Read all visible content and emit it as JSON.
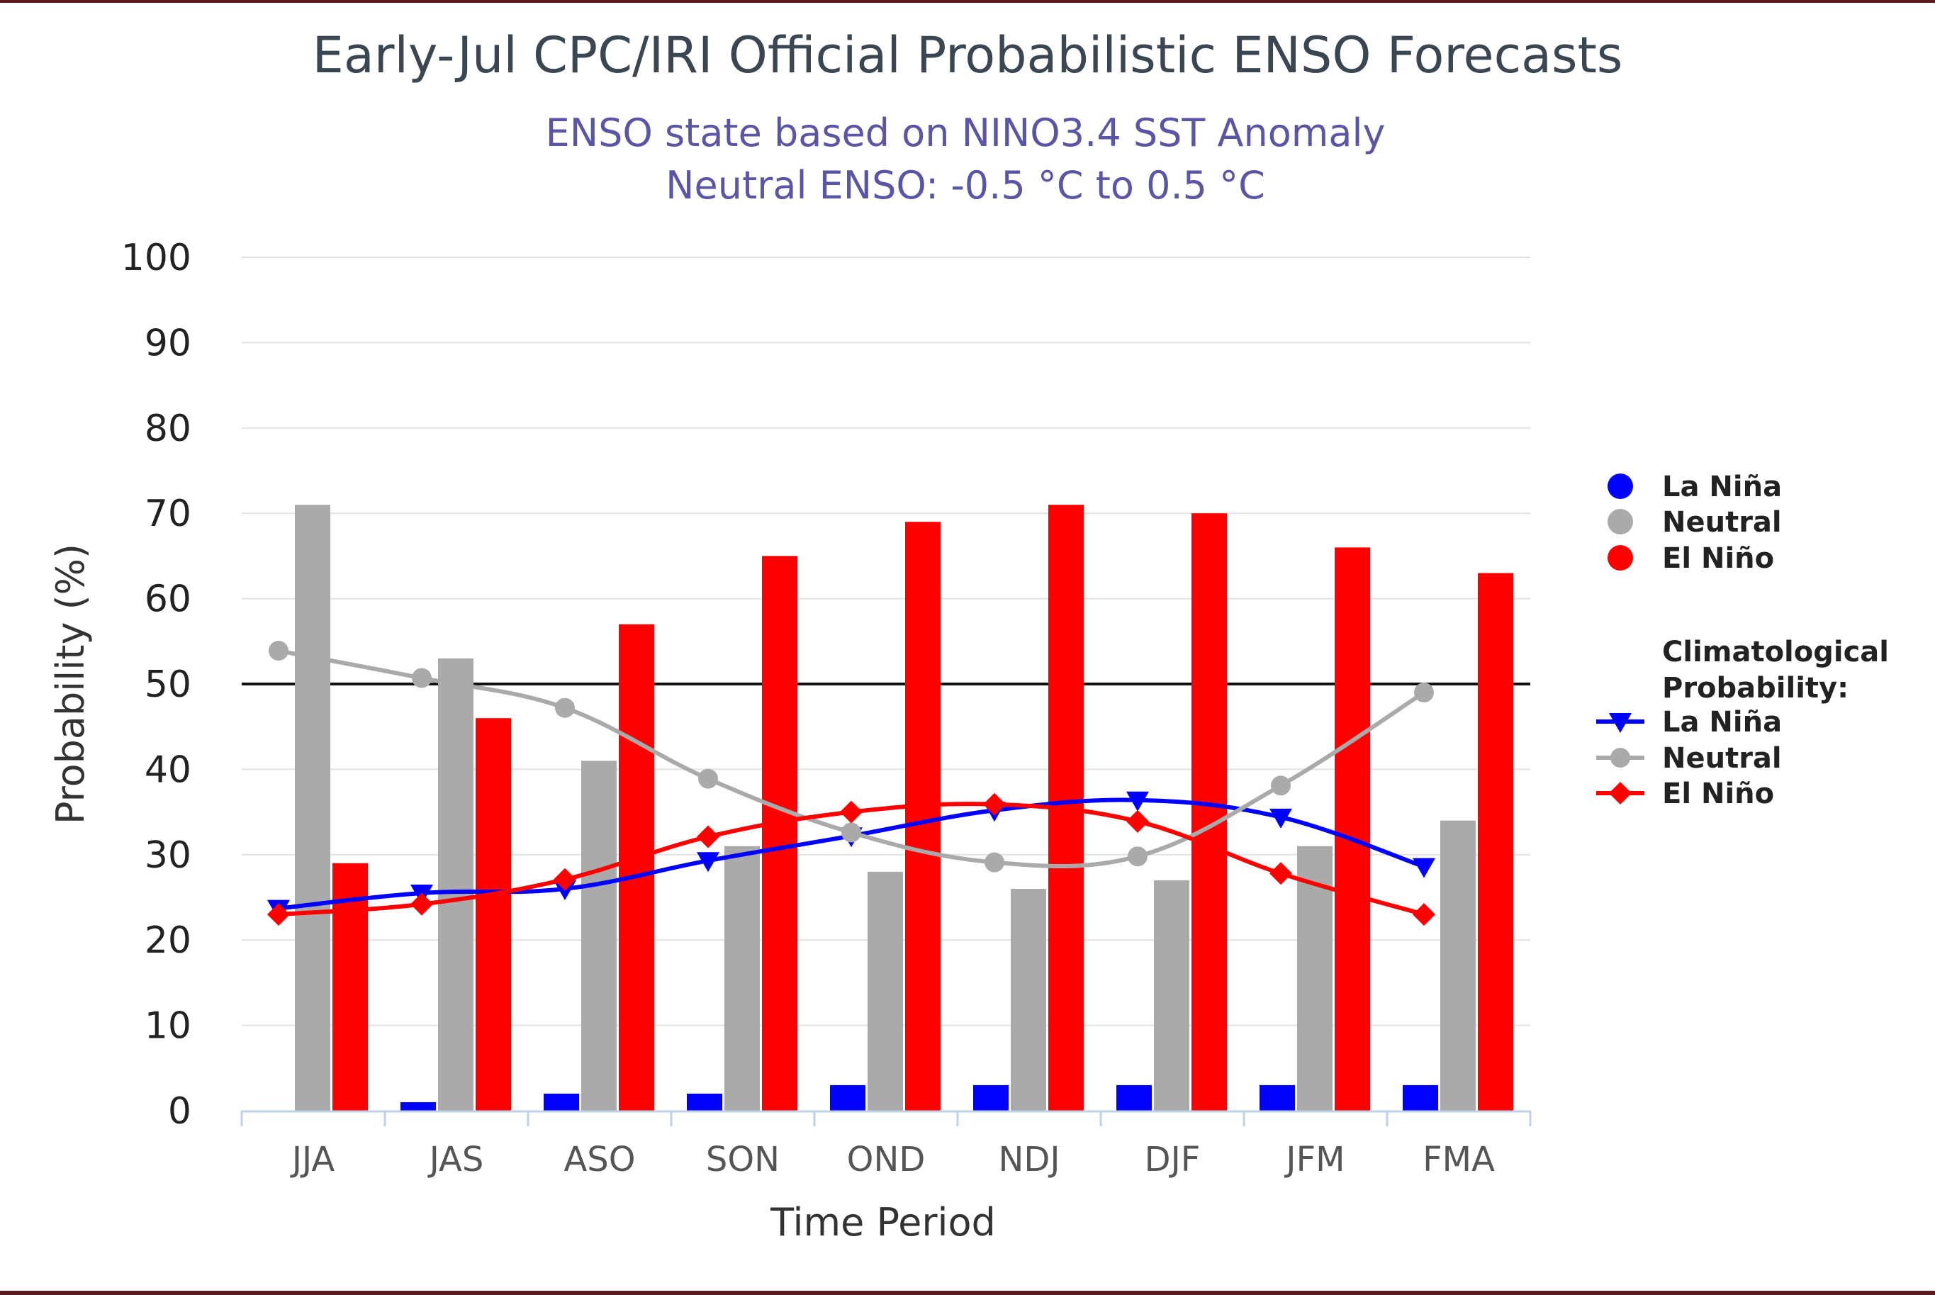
{
  "chart_data": {
    "type": "bar",
    "title": "Early-Jul CPC/IRI Official Probabilistic ENSO Forecasts",
    "subtitle": [
      "ENSO state based on NINO3.4 SST Anomaly",
      "Neutral ENSO: -0.5 °C to 0.5 °C"
    ],
    "xlabel": "Time Period",
    "ylabel": "Probability (%)",
    "ylim": [
      0,
      100
    ],
    "yticks": [
      "0",
      "10",
      "20",
      "30",
      "40",
      "50",
      "60",
      "70",
      "80",
      "90",
      "100"
    ],
    "grid": true,
    "reference_line": 50,
    "categories": [
      "JJA",
      "JAS",
      "ASO",
      "SON",
      "OND",
      "NDJ",
      "DJF",
      "JFM",
      "FMA"
    ],
    "series": [
      {
        "name": "La Niña",
        "kind": "bar",
        "color": "#0000ff",
        "values": [
          0,
          1,
          2,
          2,
          3,
          3,
          3,
          3,
          3
        ]
      },
      {
        "name": "Neutral",
        "kind": "bar",
        "color": "#aaaaaa",
        "values": [
          71,
          53,
          41,
          31,
          28,
          26,
          27,
          31,
          34
        ]
      },
      {
        "name": "El Niño",
        "kind": "bar",
        "color": "#ff0000",
        "values": [
          29,
          46,
          57,
          65,
          69,
          71,
          70,
          66,
          63
        ]
      }
    ],
    "climatology_title": [
      "Climatological",
      "Probability:"
    ],
    "climatology": [
      {
        "name": "La Niña",
        "kind": "line",
        "marker": "triangle-down",
        "color": "#0000ff",
        "values": [
          23.7,
          25.5,
          26,
          29.3,
          32.2,
          35.2,
          36.4,
          34.4,
          28.6
        ]
      },
      {
        "name": "Neutral",
        "kind": "line",
        "marker": "circle",
        "color": "#aaaaaa",
        "values": [
          53.9,
          50.7,
          47.2,
          38.9,
          32.6,
          29.1,
          29.8,
          38.1,
          49
        ]
      },
      {
        "name": "El Niño",
        "kind": "line",
        "marker": "diamond",
        "color": "#ff0000",
        "values": [
          23,
          24.2,
          27.1,
          32.1,
          35,
          35.9,
          33.9,
          27.8,
          23
        ]
      }
    ],
    "legend_position": "right"
  }
}
